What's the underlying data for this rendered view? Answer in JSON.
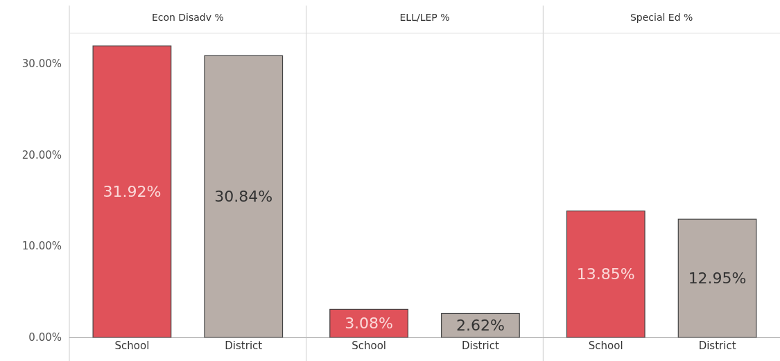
{
  "chart_data": [
    {
      "type": "bar",
      "title": "Econ Disadv %",
      "categories": [
        "School",
        "District"
      ],
      "values": [
        31.92,
        30.84
      ],
      "colors": [
        "#e0525a",
        "#b8aea8"
      ],
      "value_labels": [
        "31.92%",
        "30.84%"
      ],
      "ylim": [
        0,
        33.3
      ],
      "yticks": [
        {
          "value": 0,
          "label": "0.00%"
        },
        {
          "value": 10,
          "label": "10.00%"
        },
        {
          "value": 20,
          "label": "20.00%"
        },
        {
          "value": 30,
          "label": "30.00%"
        }
      ]
    },
    {
      "type": "bar",
      "title": "ELL/LEP %",
      "categories": [
        "School",
        "District"
      ],
      "values": [
        3.08,
        2.62
      ],
      "colors": [
        "#e0525a",
        "#b8aea8"
      ],
      "value_labels": [
        "3.08%",
        "2.62%"
      ],
      "ylim": [
        0,
        33.3
      ],
      "tick_labels": "x"
    },
    {
      "type": "bar",
      "title": "Special Ed %",
      "categories": [
        "School",
        "District"
      ],
      "values": [
        13.85,
        12.95
      ],
      "colors": [
        "#e0525a",
        "#b8aea8"
      ],
      "value_labels": [
        "13.85%",
        "12.95%"
      ],
      "ylim": [
        0,
        33.3
      ],
      "tick_labels": "x"
    }
  ]
}
